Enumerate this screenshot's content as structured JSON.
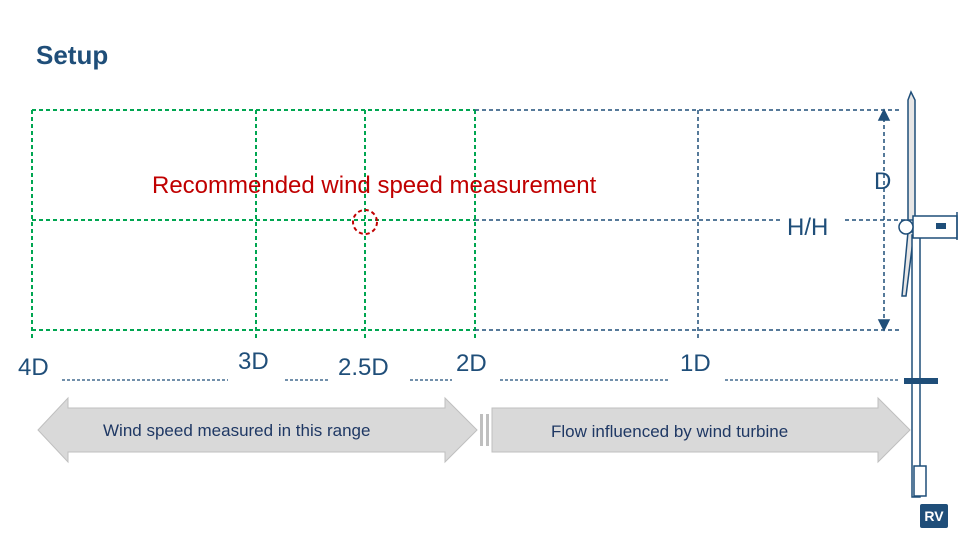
{
  "title": "Setup",
  "recommended_label": "Recommended wind speed measurement",
  "distance_labels": [
    "4D",
    "3D",
    "2.5D",
    "2D",
    "1D"
  ],
  "hub_height_label": "H/H",
  "diameter_label": "D",
  "left_arrow_label": "Wind speed measured in this range",
  "right_arrow_label": "Flow influenced by wind turbine",
  "logo_text": "RV",
  "colors": {
    "navy": "#1f4e79",
    "green": "#00a651",
    "red": "#c00000",
    "arrow_fill": "#d9d9d9"
  }
}
